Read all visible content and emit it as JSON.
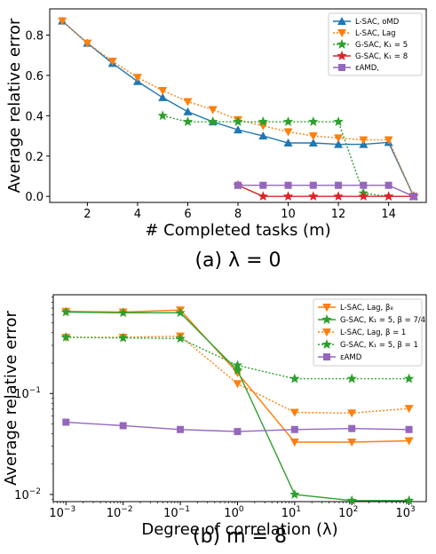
{
  "chart_data": [
    {
      "type": "line",
      "caption": "(a) λ = 0",
      "xlabel": "# Completed tasks (m)",
      "ylabel": "Average relative error",
      "xlim": [
        0.5,
        15.5
      ],
      "ylim": [
        -0.03,
        0.93
      ],
      "x_ticks": [
        2,
        4,
        6,
        8,
        10,
        12,
        14
      ],
      "y_ticks": [
        0.0,
        0.2,
        0.4,
        0.6,
        0.8
      ],
      "y_tick_labels": [
        "0.0",
        "0.2",
        "0.4",
        "0.6",
        "0.8"
      ],
      "legend_position": "top-right",
      "series": [
        {
          "name": "L-SAC, oMD",
          "color": "#1f77b4",
          "marker": "triangle-up",
          "dash": "solid",
          "x": [
            1,
            2,
            3,
            4,
            5,
            6,
            7,
            8,
            9,
            10,
            11,
            12,
            13,
            14,
            15
          ],
          "y": [
            0.87,
            0.76,
            0.66,
            0.57,
            0.49,
            0.42,
            0.37,
            0.33,
            0.3,
            0.265,
            0.265,
            0.258,
            0.258,
            0.268,
            0.0
          ]
        },
        {
          "name": "L-SAC, Lag",
          "color": "#ff7f0e",
          "marker": "triangle-down",
          "dash": "dotted",
          "x": [
            1,
            2,
            3,
            4,
            5,
            6,
            7,
            8,
            9,
            10,
            11,
            12,
            13,
            14,
            15
          ],
          "y": [
            0.87,
            0.76,
            0.67,
            0.59,
            0.525,
            0.47,
            0.43,
            0.38,
            0.35,
            0.32,
            0.3,
            0.29,
            0.28,
            0.28,
            0.0
          ]
        },
        {
          "name": "G-SAC, K₁ = 5",
          "color": "#2ca02c",
          "marker": "star",
          "dash": "dotted",
          "x": [
            5,
            6,
            7,
            8,
            9,
            10,
            11,
            12,
            13,
            14,
            15
          ],
          "y": [
            0.4,
            0.37,
            0.37,
            0.37,
            0.37,
            0.37,
            0.37,
            0.37,
            0.015,
            0.0,
            0.0
          ]
        },
        {
          "name": "G-SAC, K₁ = 8",
          "color": "#d62728",
          "marker": "star",
          "dash": "solid",
          "x": [
            8,
            9,
            10,
            11,
            12,
            13,
            14,
            15
          ],
          "y": [
            0.055,
            0.0,
            0.0,
            0.0,
            0.0,
            0.0,
            0.0,
            0.0
          ]
        },
        {
          "name": "εAMD,",
          "color": "#9467bd",
          "marker": "square",
          "dash": "solid",
          "x": [
            8,
            9,
            10,
            11,
            12,
            13,
            14,
            15
          ],
          "y": [
            0.055,
            0.055,
            0.055,
            0.055,
            0.055,
            0.055,
            0.055,
            0.0
          ]
        }
      ]
    },
    {
      "type": "line",
      "caption": "(b) m = 8",
      "xlabel": "Degree of correlation (λ)",
      "ylabel": "Average relative error",
      "x_scale": "log",
      "y_scale": "log",
      "xlim": [
        0.0006,
        2000
      ],
      "ylim": [
        0.0085,
        0.95
      ],
      "x_ticks": [
        0.001,
        0.01,
        0.1,
        1,
        10,
        100,
        1000
      ],
      "x_tick_labels": [
        "10⁻³",
        "10⁻²",
        "10⁻¹",
        "10⁰",
        "10¹",
        "10²",
        "10³"
      ],
      "y_ticks": [
        0.01,
        0.1
      ],
      "y_tick_labels": [
        "10⁻²",
        "10⁻¹"
      ],
      "legend_position": "top-right",
      "series": [
        {
          "name": "L-SAC, Lag, β₈",
          "color": "#ff7f0e",
          "marker": "triangle-down",
          "dash": "solid",
          "x": [
            0.001,
            0.01,
            0.1,
            1,
            10,
            100,
            1000
          ],
          "y": [
            0.65,
            0.64,
            0.67,
            0.16,
            0.033,
            0.033,
            0.034
          ]
        },
        {
          "name": "G-SAC, K₁ = 5, β = 7/4",
          "color": "#2ca02c",
          "marker": "star",
          "dash": "solid",
          "x": [
            0.001,
            0.01,
            0.1,
            1,
            10,
            100,
            1000
          ],
          "y": [
            0.64,
            0.63,
            0.63,
            0.17,
            0.01,
            0.0087,
            0.0087
          ]
        },
        {
          "name": "L-SAC, Lag,  β = 1",
          "color": "#ff7f0e",
          "marker": "triangle-down",
          "dash": "dotted",
          "x": [
            0.001,
            0.01,
            0.1,
            1,
            10,
            100,
            1000
          ],
          "y": [
            0.36,
            0.36,
            0.37,
            0.125,
            0.065,
            0.064,
            0.071
          ]
        },
        {
          "name": "G-SAC, K₁ = 5, β = 1",
          "color": "#2ca02c",
          "marker": "star",
          "dash": "dotted",
          "x": [
            0.001,
            0.01,
            0.1,
            1,
            10,
            100,
            1000
          ],
          "y": [
            0.36,
            0.355,
            0.35,
            0.19,
            0.14,
            0.14,
            0.14
          ]
        },
        {
          "name": "εAMD",
          "color": "#9467bd",
          "marker": "square",
          "dash": "solid",
          "x": [
            0.001,
            0.01,
            0.1,
            1,
            10,
            100,
            1000
          ],
          "y": [
            0.052,
            0.048,
            0.044,
            0.042,
            0.044,
            0.045,
            0.044
          ]
        }
      ]
    }
  ]
}
